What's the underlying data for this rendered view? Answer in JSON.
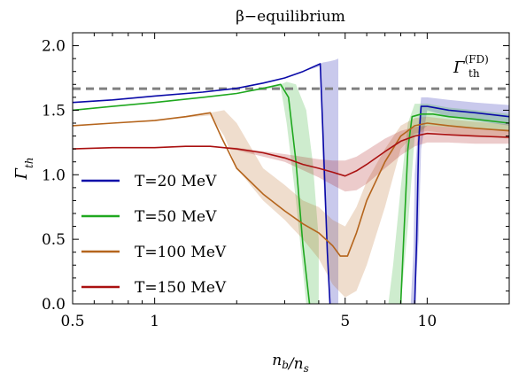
{
  "chart_data": {
    "type": "line",
    "title": "β−equilibrium",
    "xlabel": "n_b/n_s",
    "ylabel": "Γ_th",
    "xscale": "log",
    "xlim": [
      0.5,
      20
    ],
    "ylim": [
      0.0,
      2.1
    ],
    "xticks": [
      {
        "value": 0.5,
        "label": "0.5"
      },
      {
        "value": 1,
        "label": "1"
      },
      {
        "value": 5,
        "label": "5"
      },
      {
        "value": 10,
        "label": "10"
      }
    ],
    "yticks": [
      {
        "value": 0.0,
        "label": "0.0"
      },
      {
        "value": 0.5,
        "label": "0.5"
      },
      {
        "value": 1.0,
        "label": "1.0"
      },
      {
        "value": 1.5,
        "label": "1.5"
      },
      {
        "value": 2.0,
        "label": "2.0"
      }
    ],
    "legend_position": "left",
    "reference_line": {
      "label": "Γ_th^(FD)",
      "value": 1.667,
      "color": "#808080"
    },
    "series": [
      {
        "name": "T=20 MeV",
        "color": "#0a0aa8",
        "segments": [
          {
            "x": [
              0.5,
              0.7,
              1.0,
              1.5,
              2.0,
              2.5,
              3.0,
              3.5,
              4.05,
              4.15,
              4.3,
              4.4
            ],
            "y": [
              1.56,
              1.58,
              1.61,
              1.64,
              1.67,
              1.71,
              1.75,
              1.8,
              1.86,
              1.3,
              0.4,
              0.0
            ]
          },
          {
            "x": [
              9.0,
              9.15,
              9.3,
              9.5,
              10.0,
              12.0,
              15.0,
              20.0
            ],
            "y": [
              0.0,
              0.5,
              1.25,
              1.53,
              1.53,
              1.5,
              1.48,
              1.45
            ]
          }
        ],
        "band": [
          {
            "x": [
              0.5,
              1.0,
              2.0,
              3.0,
              3.5,
              4.05,
              4.15,
              4.4,
              4.6,
              4.72
            ],
            "lo": [
              1.56,
              1.61,
              1.67,
              1.75,
              1.8,
              1.84,
              1.0,
              0.0,
              0.0,
              0.0
            ],
            "hi": [
              1.56,
              1.61,
              1.67,
              1.75,
              1.8,
              1.86,
              1.87,
              1.88,
              1.89,
              1.9
            ]
          },
          {
            "x": [
              8.7,
              8.9,
              9.0,
              9.3,
              9.5,
              10.0,
              12.0,
              15.0,
              20.0
            ],
            "lo": [
              0.0,
              0.0,
              0.0,
              0.5,
              1.2,
              1.5,
              1.45,
              1.42,
              1.38
            ],
            "hi": [
              0.0,
              0.4,
              1.0,
              1.4,
              1.6,
              1.6,
              1.58,
              1.56,
              1.54
            ]
          }
        ]
      },
      {
        "name": "T=50 MeV",
        "color": "#1fa81f",
        "segments": [
          {
            "x": [
              0.5,
              0.7,
              1.0,
              1.5,
              2.0,
              2.5,
              2.9,
              3.1,
              3.3,
              3.5,
              3.7
            ],
            "y": [
              1.5,
              1.53,
              1.56,
              1.6,
              1.63,
              1.67,
              1.7,
              1.6,
              1.1,
              0.45,
              0.0
            ]
          },
          {
            "x": [
              8.0,
              8.2,
              8.5,
              8.8,
              9.5,
              10.5,
              12.0,
              15.0,
              20.0
            ],
            "y": [
              0.0,
              0.5,
              1.2,
              1.45,
              1.47,
              1.47,
              1.45,
              1.43,
              1.4
            ]
          }
        ],
        "band": [
          {
            "x": [
              0.5,
              1.0,
              2.0,
              2.9,
              3.05,
              3.3,
              3.6,
              3.8,
              4.0
            ],
            "lo": [
              1.5,
              1.56,
              1.63,
              1.68,
              1.4,
              0.8,
              0.0,
              0.0,
              0.0
            ],
            "hi": [
              1.5,
              1.56,
              1.63,
              1.7,
              1.72,
              1.7,
              1.5,
              1.1,
              0.5
            ]
          },
          {
            "x": [
              7.2,
              7.5,
              8.0,
              8.5,
              9.0,
              10.0,
              12.0,
              15.0,
              20.0
            ],
            "lo": [
              0.0,
              0.0,
              0.0,
              0.6,
              1.3,
              1.38,
              1.37,
              1.36,
              1.34
            ],
            "hi": [
              0.0,
              0.3,
              0.9,
              1.4,
              1.55,
              1.55,
              1.52,
              1.5,
              1.47
            ]
          }
        ]
      },
      {
        "name": "T=100 MeV",
        "color": "#b5651d",
        "segments": [
          {
            "x": [
              0.5,
              0.7,
              1.0,
              1.3,
              1.6,
              1.75,
              2.0,
              2.5,
              3.0,
              3.5,
              4.0,
              4.5,
              4.8,
              5.1,
              5.5,
              6.0,
              7.0,
              8.0,
              9.0,
              10.0,
              12.0,
              15.0,
              20.0
            ],
            "y": [
              1.38,
              1.4,
              1.42,
              1.45,
              1.48,
              1.3,
              1.05,
              0.85,
              0.72,
              0.62,
              0.55,
              0.45,
              0.37,
              0.37,
              0.55,
              0.8,
              1.1,
              1.3,
              1.38,
              1.4,
              1.38,
              1.36,
              1.34
            ]
          }
        ],
        "band": [
          {
            "x": [
              0.5,
              1.0,
              1.6,
              1.8,
              2.0,
              2.5,
              3.0,
              3.5,
              4.0,
              4.5,
              5.0,
              5.5,
              6.0,
              7.0,
              8.0,
              9.0,
              10.0,
              12.0,
              15.0,
              20.0
            ],
            "lo": [
              1.38,
              1.42,
              1.46,
              1.3,
              1.05,
              0.8,
              0.65,
              0.5,
              0.35,
              0.15,
              0.05,
              0.1,
              0.3,
              0.75,
              1.2,
              1.32,
              1.34,
              1.32,
              1.3,
              1.28
            ],
            "hi": [
              1.38,
              1.42,
              1.48,
              1.5,
              1.4,
              1.05,
              0.92,
              0.8,
              0.75,
              0.65,
              0.6,
              0.75,
              0.95,
              1.2,
              1.38,
              1.44,
              1.45,
              1.43,
              1.41,
              1.39
            ]
          }
        ]
      },
      {
        "name": "T=150 MeV",
        "color": "#aa1010",
        "segments": [
          {
            "x": [
              0.5,
              0.7,
              1.0,
              1.3,
              1.6,
              2.0,
              2.5,
              3.0,
              3.5,
              4.0,
              4.5,
              5.0,
              5.5,
              6.0,
              7.0,
              8.0,
              9.0,
              10.0,
              12.0,
              15.0,
              20.0
            ],
            "y": [
              1.2,
              1.21,
              1.21,
              1.22,
              1.22,
              1.2,
              1.17,
              1.13,
              1.08,
              1.05,
              1.02,
              0.99,
              1.03,
              1.08,
              1.18,
              1.26,
              1.3,
              1.32,
              1.31,
              1.3,
              1.29
            ]
          }
        ],
        "band": [
          {
            "x": [
              0.5,
              1.0,
              1.6,
              2.0,
              3.0,
              4.0,
              4.5,
              5.0,
              5.5,
              6.0,
              7.0,
              8.0,
              9.0,
              10.0,
              12.0,
              15.0,
              20.0
            ],
            "lo": [
              1.2,
              1.21,
              1.22,
              1.19,
              1.1,
              0.98,
              0.92,
              0.87,
              0.88,
              0.93,
              1.05,
              1.15,
              1.22,
              1.25,
              1.25,
              1.24,
              1.24
            ],
            "hi": [
              1.2,
              1.21,
              1.22,
              1.21,
              1.16,
              1.12,
              1.11,
              1.11,
              1.14,
              1.19,
              1.28,
              1.34,
              1.37,
              1.38,
              1.37,
              1.36,
              1.35
            ]
          }
        ]
      }
    ]
  }
}
